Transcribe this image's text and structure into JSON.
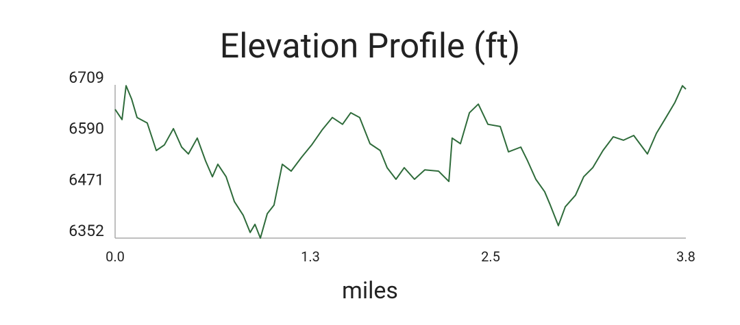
{
  "chart_data": {
    "type": "line",
    "title": "Elevation Profile (ft)",
    "x_label": "miles",
    "x": [
      0,
      0.046,
      0.073,
      0.11,
      0.146,
      0.214,
      0.274,
      0.328,
      0.388,
      0.443,
      0.488,
      0.547,
      0.602,
      0.648,
      0.684,
      0.739,
      0.794,
      0.853,
      0.899,
      0.931,
      0.967,
      1.013,
      1.058,
      1.113,
      1.172,
      1.241,
      1.309,
      1.378,
      1.446,
      1.514,
      1.569,
      1.628,
      1.697,
      1.765,
      1.811,
      1.87,
      1.925,
      1.993,
      2.062,
      2.153,
      2.222,
      2.244,
      2.299,
      2.359,
      2.418,
      2.482,
      2.564,
      2.619,
      2.701,
      2.746,
      2.801,
      2.86,
      2.897,
      2.951,
      2.997,
      3.065,
      3.12,
      3.18,
      3.248,
      3.317,
      3.385,
      3.453,
      3.544,
      3.604,
      3.659,
      3.727,
      3.777,
      3.8
    ],
    "values": [
      6652,
      6628,
      6707,
      6676,
      6633,
      6620,
      6556,
      6569,
      6607,
      6564,
      6548,
      6585,
      6532,
      6495,
      6524,
      6495,
      6437,
      6405,
      6365,
      6384,
      6352,
      6409,
      6429,
      6524,
      6508,
      6540,
      6569,
      6604,
      6633,
      6617,
      6644,
      6633,
      6572,
      6556,
      6516,
      6489,
      6516,
      6489,
      6511,
      6508,
      6484,
      6585,
      6572,
      6644,
      6664,
      6617,
      6612,
      6553,
      6564,
      6532,
      6489,
      6460,
      6429,
      6381,
      6425,
      6452,
      6495,
      6516,
      6556,
      6588,
      6580,
      6591,
      6548,
      6596,
      6628,
      6668,
      6707,
      6699
    ],
    "color": "#2e6b3a",
    "xlim": [
      0,
      3.8
    ],
    "xticks": [
      {
        "value": 0,
        "label": "0.0"
      },
      1.3,
      2.5,
      3.8
    ],
    "ylim": [
      6352,
      6709
    ],
    "yticks": [
      6352,
      6471,
      6590,
      6709
    ]
  }
}
